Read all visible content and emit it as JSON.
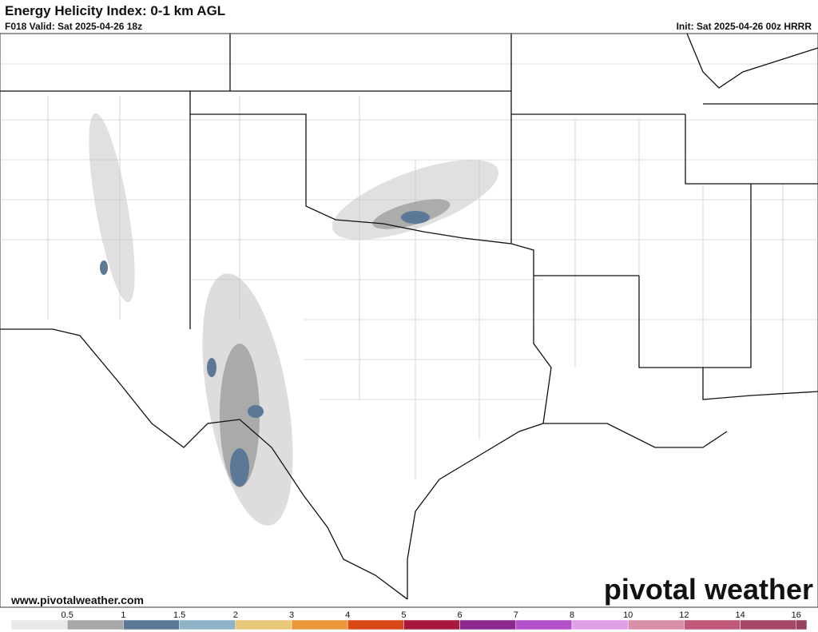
{
  "header": {
    "title": "Energy Helicity Index: 0-1 km AGL",
    "valid": "F018 Valid: Sat 2025-04-26 18z",
    "init": "Init: Sat 2025-04-26 00z HRRR"
  },
  "watermark": {
    "url": "www.pivotalweather.com",
    "logo": "pivotal weather"
  },
  "colorbar": {
    "ticks": [
      "0.5",
      "1",
      "1.5",
      "2",
      "3",
      "4",
      "5",
      "6",
      "7",
      "8",
      "10",
      "12",
      "14",
      "16"
    ],
    "colors": [
      "#e8e8e8",
      "#a8a8a8",
      "#5c7896",
      "#8fb4c8",
      "#e8c878",
      "#e89838",
      "#d84818",
      "#a8183c",
      "#8c2890",
      "#b450c8",
      "#e0a0e8",
      "#d890a8",
      "#c05878",
      "#a84868",
      "#984060"
    ]
  }
}
